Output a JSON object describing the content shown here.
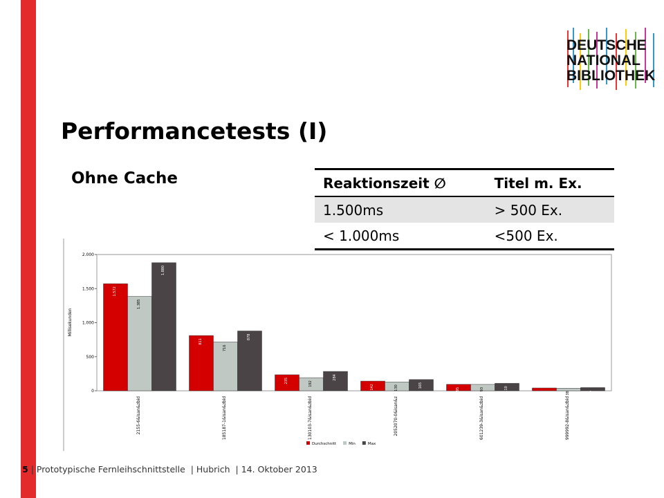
{
  "slide": {
    "title": "Performancetests (I)",
    "subtitle": "Ohne Cache",
    "logo": [
      "DEUTSCHE",
      "NATIONAL",
      "BIBLIOTHEK"
    ],
    "table": {
      "header": [
        "Reaktionszeit ∅",
        "Titel m. Ex."
      ],
      "rows": [
        [
          "1.500ms",
          "> 500 Ex."
        ],
        [
          "< 1.000ms",
          "<500 Ex."
        ]
      ]
    },
    "footer": {
      "page": "5",
      "text": "| Prototypische Fernleihschnittstelle  | Hubrich  | 14. Oktober 2013"
    }
  },
  "chart_data": {
    "type": "bar",
    "ylabel": "Millisekunden",
    "categories": [
      "2155-6&isan&zbid",
      "185187-1&isan&zbid",
      "130103-7&isan&zbid",
      "2052070-0&isan&z",
      "601239-3&isan&zbid",
      "999992-8&isan&zbid"
    ],
    "series": [
      {
        "name": "Durchschnitt",
        "color": "#d40000",
        "values": [
          1572,
          811,
          235,
          142,
          95,
          41
        ],
        "value_labels": [
          "1.572",
          "811",
          "235",
          "142",
          "95",
          "41"
        ]
      },
      {
        "name": "Min",
        "color": "#c0c8c4",
        "values": [
          1385,
          716,
          192,
          130,
          93,
          38
        ],
        "value_labels": [
          "1.385",
          "716",
          "192",
          "130",
          "93",
          "38"
        ]
      },
      {
        "name": "Max",
        "color": "#4a4446",
        "values": [
          1880,
          878,
          284,
          165,
          110,
          47
        ],
        "value_labels": [
          "1.880",
          "878",
          "284",
          "165",
          "110",
          "47"
        ]
      }
    ],
    "ylim": [
      0,
      2000
    ],
    "yticks": [
      0,
      500,
      {
        "value": 1000,
        "label": "1.000"
      },
      {
        "value": 1500,
        "label": "1.500"
      },
      {
        "value": 2000,
        "label": "2.000"
      }
    ],
    "grid": false
  }
}
